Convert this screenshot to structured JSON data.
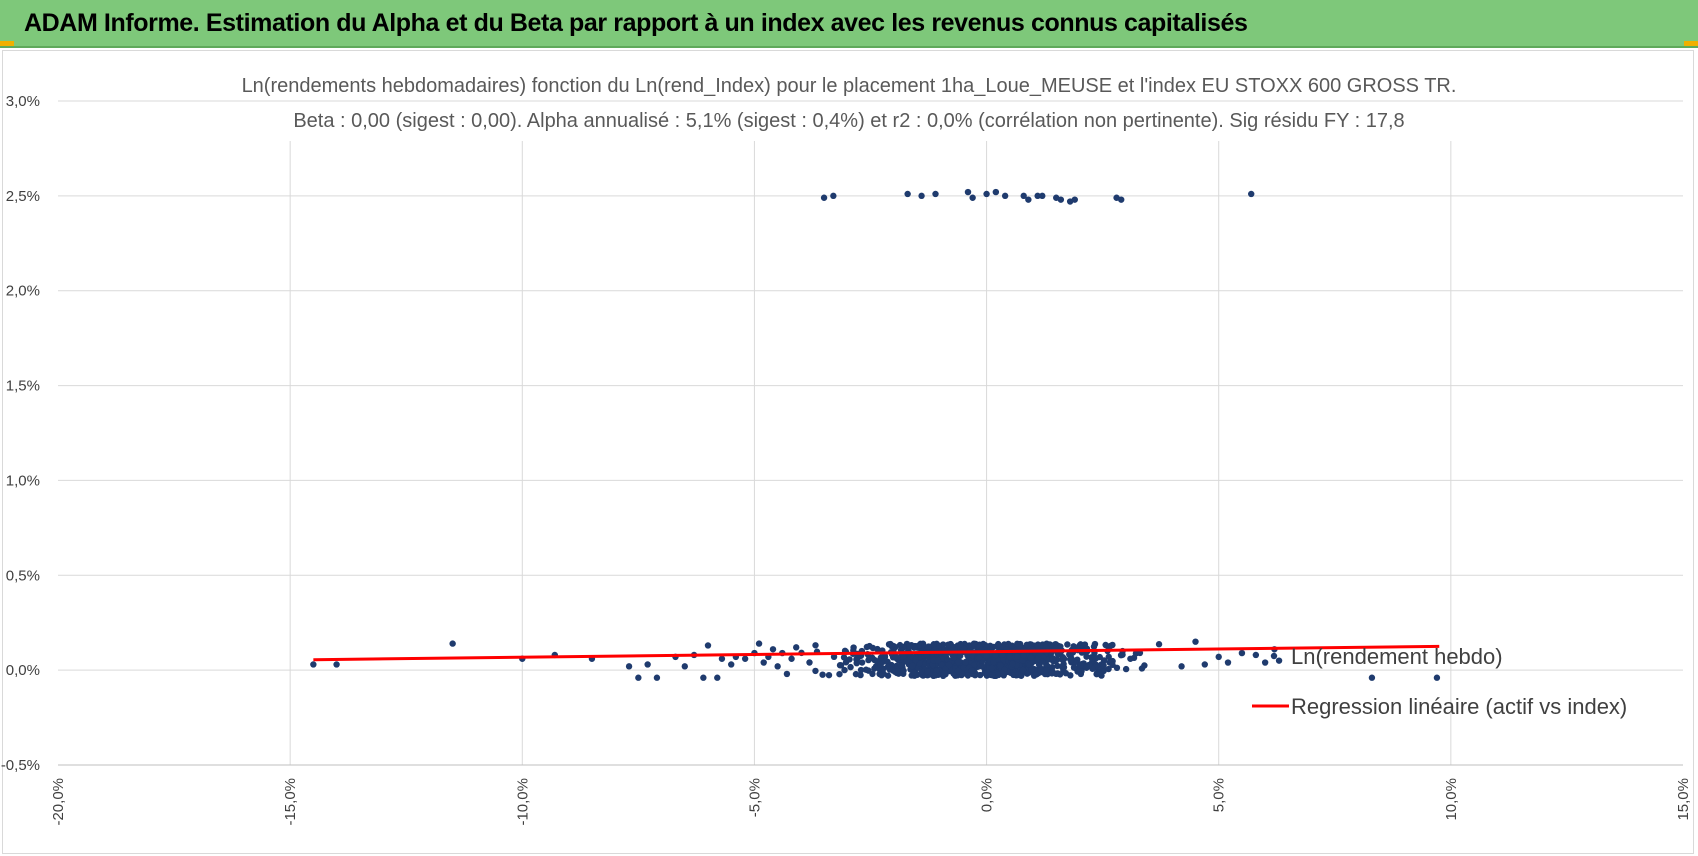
{
  "banner": {
    "title": "ADAM Informe. Estimation du Alpha et du Beta par rapport à un index avec les revenus connus capitalisés",
    "color": "#7ec87a"
  },
  "chart_data": {
    "type": "scatter",
    "title": "",
    "subtitle_lines": [
      "Ln(rendements hebdomadaires) fonction du Ln(rend_Index) pour le placement 1ha_Loue_MEUSE et l'index EU STOXX 600 GROSS TR.",
      "Beta : 0,00 (sigest : 0,00).  Alpha annualisé : 5,1% (sigest : 0,4%) et r2 : 0,0% (corrélation non pertinente). Sig résidu FY : 17,8"
    ],
    "xlabel": "",
    "ylabel": "",
    "xlim": [
      -0.2,
      0.15
    ],
    "ylim": [
      -0.005,
      0.03
    ],
    "x_ticks": [
      -0.2,
      -0.15,
      -0.1,
      -0.05,
      0.0,
      0.05,
      0.1,
      0.15
    ],
    "x_tick_labels": [
      "-20,0%",
      "-15,0%",
      "-10,0%",
      "-5,0%",
      "0,0%",
      "5,0%",
      "10,0%",
      "15,0%"
    ],
    "y_ticks": [
      -0.005,
      0.0,
      0.005,
      0.01,
      0.015,
      0.02,
      0.025,
      0.03
    ],
    "y_tick_labels": [
      "-0,5%",
      "0,0%",
      "0,5%",
      "1,0%",
      "1,5%",
      "2,0%",
      "2,5%",
      "3,0%"
    ],
    "grid": true,
    "legend_position": "right",
    "series": [
      {
        "name": "Ln(rendement hebdo)",
        "color": "#1f3b6e",
        "points": [
          [
            -0.145,
            0.0003
          ],
          [
            -0.14,
            0.0003
          ],
          [
            -0.115,
            0.0014
          ],
          [
            -0.1,
            0.0006
          ],
          [
            -0.093,
            0.0008
          ],
          [
            -0.085,
            0.0006
          ],
          [
            -0.077,
            0.0002
          ],
          [
            -0.075,
            -0.0004
          ],
          [
            -0.073,
            0.0003
          ],
          [
            -0.071,
            -0.0004
          ],
          [
            -0.067,
            0.0007
          ],
          [
            -0.065,
            0.0002
          ],
          [
            -0.063,
            0.0008
          ],
          [
            -0.061,
            -0.0004
          ],
          [
            -0.06,
            0.0013
          ],
          [
            -0.058,
            -0.0004
          ],
          [
            -0.057,
            0.0006
          ],
          [
            -0.055,
            0.0003
          ],
          [
            -0.054,
            0.0007
          ],
          [
            -0.052,
            0.0006
          ],
          [
            -0.05,
            0.0009
          ],
          [
            -0.049,
            0.0014
          ],
          [
            -0.048,
            0.0004
          ],
          [
            -0.047,
            0.0007
          ],
          [
            -0.046,
            0.0011
          ],
          [
            -0.045,
            0.0002
          ],
          [
            -0.044,
            0.0009
          ],
          [
            -0.043,
            -0.0002
          ],
          [
            -0.042,
            0.0006
          ],
          [
            -0.041,
            0.0012
          ],
          [
            -0.035,
            0.0249
          ],
          [
            -0.033,
            0.025
          ],
          [
            -0.017,
            0.0251
          ],
          [
            -0.014,
            0.025
          ],
          [
            -0.011,
            0.0251
          ],
          [
            -0.004,
            0.0252
          ],
          [
            -0.003,
            0.0249
          ],
          [
            0.0,
            0.0251
          ],
          [
            0.002,
            0.0252
          ],
          [
            0.004,
            0.025
          ],
          [
            0.008,
            0.025
          ],
          [
            0.009,
            0.0248
          ],
          [
            0.011,
            0.025
          ],
          [
            0.012,
            0.025
          ],
          [
            0.015,
            0.0249
          ],
          [
            0.016,
            0.0248
          ],
          [
            0.018,
            0.0247
          ],
          [
            0.019,
            0.0248
          ],
          [
            0.028,
            0.0249
          ],
          [
            0.029,
            0.0248
          ],
          [
            0.057,
            0.0251
          ],
          [
            0.042,
            0.0002
          ],
          [
            0.045,
            0.0015
          ],
          [
            0.047,
            0.0003
          ],
          [
            0.05,
            0.0007
          ],
          [
            0.052,
            0.0004
          ],
          [
            0.055,
            0.0009
          ],
          [
            0.058,
            0.0008
          ],
          [
            0.06,
            0.0004
          ],
          [
            0.062,
            0.0011
          ],
          [
            0.063,
            0.0005
          ],
          [
            0.083,
            -0.0004
          ],
          [
            0.097,
            -0.0004
          ]
        ]
      },
      {
        "name": "Regression linéaire (actif vs index)",
        "color": "#ff0000",
        "line": [
          [
            -0.145,
            0.00055
          ],
          [
            0.0975,
            0.00125
          ]
        ]
      }
    ]
  }
}
